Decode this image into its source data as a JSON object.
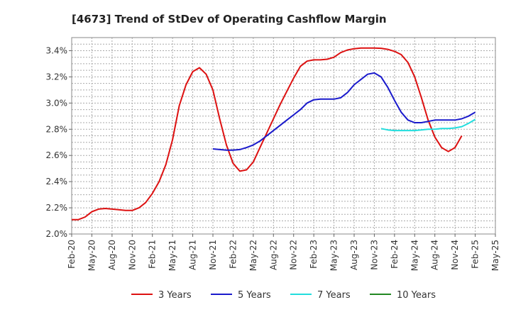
{
  "chart_data": {
    "type": "line",
    "title": "[4673]  Trend of StDev of Operating Cashflow Margin",
    "xlabel": "",
    "ylabel": "",
    "ylim": [
      2.0,
      3.5
    ],
    "yticks": [
      "2.0%",
      "2.2%",
      "2.4%",
      "2.6%",
      "2.8%",
      "3.0%",
      "3.2%",
      "3.4%"
    ],
    "ytick_values": [
      2.0,
      2.2,
      2.4,
      2.6,
      2.8,
      3.0,
      3.2,
      3.4
    ],
    "xticks": [
      "Feb-20",
      "May-20",
      "Aug-20",
      "Nov-20",
      "Feb-21",
      "May-21",
      "Aug-21",
      "Nov-21",
      "Feb-22",
      "May-22",
      "Aug-22",
      "Nov-22",
      "Feb-23",
      "May-23",
      "Aug-23",
      "Nov-23",
      "Feb-24",
      "May-24",
      "Aug-24",
      "Nov-24",
      "Feb-25",
      "May-25"
    ],
    "x_start": "Feb-20",
    "x_end": "May-25",
    "grid": true,
    "legend_position": "bottom",
    "series": [
      {
        "name": "3 Years",
        "color": "#dd1111",
        "start": "Feb-20",
        "values": [
          2.11,
          2.11,
          2.13,
          2.17,
          2.19,
          2.195,
          2.19,
          2.185,
          2.18,
          2.18,
          2.2,
          2.24,
          2.31,
          2.4,
          2.53,
          2.72,
          2.98,
          3.14,
          3.24,
          3.27,
          3.22,
          3.1,
          2.88,
          2.68,
          2.54,
          2.48,
          2.49,
          2.55,
          2.66,
          2.77,
          2.88,
          2.99,
          3.09,
          3.19,
          3.28,
          3.32,
          3.33,
          3.33,
          3.335,
          3.35,
          3.385,
          3.405,
          3.415,
          3.42,
          3.42,
          3.42,
          3.418,
          3.41,
          3.395,
          3.37,
          3.31,
          3.2,
          3.04,
          2.87,
          2.74,
          2.66,
          2.63,
          2.66,
          2.75
        ]
      },
      {
        "name": "5 Years",
        "color": "#1a1acc",
        "start": "Feb-20",
        "values": [
          null,
          null,
          null,
          null,
          null,
          null,
          null,
          null,
          null,
          null,
          null,
          null,
          null,
          null,
          null,
          null,
          null,
          null,
          null,
          null,
          null,
          2.65,
          2.645,
          2.64,
          2.64,
          2.645,
          2.66,
          2.68,
          2.71,
          2.75,
          2.79,
          2.83,
          2.87,
          2.91,
          2.95,
          3.0,
          3.025,
          3.03,
          3.03,
          3.03,
          3.04,
          3.08,
          3.14,
          3.18,
          3.22,
          3.23,
          3.2,
          3.12,
          3.02,
          2.93,
          2.87,
          2.85,
          2.85,
          2.86,
          2.87,
          2.87,
          2.87,
          2.87,
          2.88,
          2.9,
          2.93
        ]
      },
      {
        "name": "7 Years",
        "color": "#22dddd",
        "start": "Feb-20",
        "values": [
          null,
          null,
          null,
          null,
          null,
          null,
          null,
          null,
          null,
          null,
          null,
          null,
          null,
          null,
          null,
          null,
          null,
          null,
          null,
          null,
          null,
          null,
          null,
          null,
          null,
          null,
          null,
          null,
          null,
          null,
          null,
          null,
          null,
          null,
          null,
          null,
          null,
          null,
          null,
          null,
          null,
          null,
          null,
          null,
          null,
          null,
          2.805,
          2.795,
          2.79,
          2.79,
          2.79,
          2.79,
          2.795,
          2.8,
          2.8,
          2.805,
          2.805,
          2.81,
          2.82,
          2.845,
          2.875
        ]
      },
      {
        "name": "10 Years",
        "color": "#228822",
        "start": "Feb-20",
        "values": []
      }
    ]
  }
}
